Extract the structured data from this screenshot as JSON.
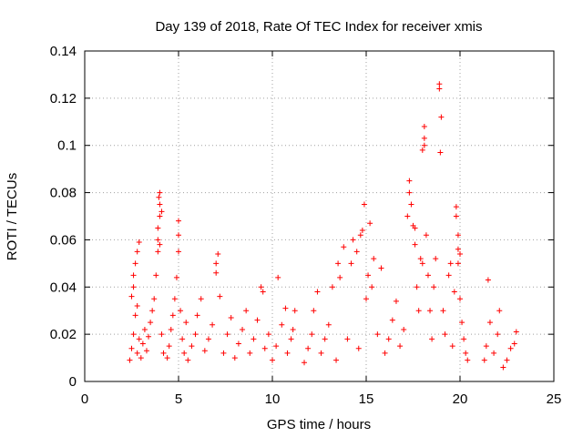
{
  "chart_data": {
    "type": "scatter",
    "title": "Day 139 of 2018, Rate Of TEC Index for receiver xmis",
    "xlabel": "GPS time / hours",
    "ylabel": "ROTI / TECUs",
    "xlim": [
      0,
      25
    ],
    "ylim": [
      0,
      0.14
    ],
    "xticks": [
      0,
      5,
      10,
      15,
      20,
      25
    ],
    "xtick_labels": [
      "0",
      "5",
      "10",
      "15",
      "20",
      "25"
    ],
    "yticks": [
      0,
      0.02,
      0.04,
      0.06,
      0.08,
      0.1,
      0.12,
      0.14
    ],
    "ytick_labels": [
      "0",
      "0.02",
      "0.04",
      "0.06",
      "0.08",
      "0.1",
      "0.12",
      "0.14"
    ],
    "grid": true,
    "marker": "+",
    "series": [
      {
        "name": "ROTI",
        "color": "#ff0000",
        "points": [
          [
            2.4,
            0.009
          ],
          [
            2.5,
            0.014
          ],
          [
            2.6,
            0.02
          ],
          [
            2.7,
            0.028
          ],
          [
            2.8,
            0.012
          ],
          [
            2.9,
            0.018
          ],
          [
            2.5,
            0.036
          ],
          [
            2.6,
            0.045
          ],
          [
            2.7,
            0.05
          ],
          [
            2.8,
            0.055
          ],
          [
            2.9,
            0.059
          ],
          [
            2.6,
            0.04
          ],
          [
            2.8,
            0.032
          ],
          [
            3.0,
            0.01
          ],
          [
            3.1,
            0.016
          ],
          [
            3.2,
            0.022
          ],
          [
            3.3,
            0.013
          ],
          [
            3.4,
            0.019
          ],
          [
            3.5,
            0.025
          ],
          [
            3.6,
            0.03
          ],
          [
            3.7,
            0.035
          ],
          [
            3.8,
            0.045
          ],
          [
            3.9,
            0.055
          ],
          [
            3.9,
            0.06
          ],
          [
            3.9,
            0.065
          ],
          [
            4.0,
            0.07
          ],
          [
            4.0,
            0.075
          ],
          [
            4.0,
            0.08
          ],
          [
            3.95,
            0.078
          ],
          [
            4.1,
            0.072
          ],
          [
            4.0,
            0.058
          ],
          [
            4.1,
            0.02
          ],
          [
            4.2,
            0.012
          ],
          [
            4.4,
            0.01
          ],
          [
            4.5,
            0.015
          ],
          [
            4.6,
            0.022
          ],
          [
            4.7,
            0.028
          ],
          [
            4.8,
            0.035
          ],
          [
            4.9,
            0.044
          ],
          [
            5.0,
            0.055
          ],
          [
            5.0,
            0.062
          ],
          [
            5.0,
            0.068
          ],
          [
            5.1,
            0.03
          ],
          [
            5.2,
            0.018
          ],
          [
            5.3,
            0.012
          ],
          [
            5.4,
            0.025
          ],
          [
            5.5,
            0.009
          ],
          [
            5.7,
            0.015
          ],
          [
            5.9,
            0.02
          ],
          [
            6.0,
            0.028
          ],
          [
            6.2,
            0.035
          ],
          [
            6.4,
            0.013
          ],
          [
            6.6,
            0.018
          ],
          [
            6.8,
            0.024
          ],
          [
            7.0,
            0.046
          ],
          [
            7.1,
            0.054
          ],
          [
            7.0,
            0.05
          ],
          [
            7.2,
            0.036
          ],
          [
            7.4,
            0.012
          ],
          [
            7.6,
            0.02
          ],
          [
            7.8,
            0.027
          ],
          [
            8.0,
            0.01
          ],
          [
            8.2,
            0.016
          ],
          [
            8.4,
            0.022
          ],
          [
            8.6,
            0.03
          ],
          [
            8.8,
            0.012
          ],
          [
            9.0,
            0.018
          ],
          [
            9.2,
            0.026
          ],
          [
            9.4,
            0.04
          ],
          [
            9.5,
            0.038
          ],
          [
            9.6,
            0.014
          ],
          [
            9.8,
            0.02
          ],
          [
            10.0,
            0.009
          ],
          [
            10.2,
            0.015
          ],
          [
            10.3,
            0.044
          ],
          [
            10.5,
            0.024
          ],
          [
            10.7,
            0.031
          ],
          [
            10.8,
            0.012
          ],
          [
            11.0,
            0.018
          ],
          [
            11.1,
            0.022
          ],
          [
            11.2,
            0.03
          ],
          [
            11.7,
            0.008
          ],
          [
            11.9,
            0.014
          ],
          [
            12.1,
            0.02
          ],
          [
            12.2,
            0.03
          ],
          [
            12.4,
            0.038
          ],
          [
            12.6,
            0.012
          ],
          [
            12.8,
            0.018
          ],
          [
            13.0,
            0.024
          ],
          [
            13.2,
            0.04
          ],
          [
            13.4,
            0.009
          ],
          [
            13.5,
            0.05
          ],
          [
            13.6,
            0.044
          ],
          [
            13.8,
            0.057
          ],
          [
            14.0,
            0.018
          ],
          [
            14.2,
            0.05
          ],
          [
            14.3,
            0.06
          ],
          [
            14.5,
            0.055
          ],
          [
            14.6,
            0.014
          ],
          [
            14.7,
            0.062
          ],
          [
            14.8,
            0.064
          ],
          [
            14.9,
            0.075
          ],
          [
            15.0,
            0.035
          ],
          [
            15.1,
            0.045
          ],
          [
            15.2,
            0.067
          ],
          [
            15.3,
            0.04
          ],
          [
            15.4,
            0.052
          ],
          [
            15.6,
            0.02
          ],
          [
            15.8,
            0.048
          ],
          [
            16.0,
            0.012
          ],
          [
            16.2,
            0.018
          ],
          [
            16.4,
            0.026
          ],
          [
            16.6,
            0.034
          ],
          [
            16.8,
            0.015
          ],
          [
            17.0,
            0.022
          ],
          [
            17.2,
            0.07
          ],
          [
            17.3,
            0.08
          ],
          [
            17.3,
            0.085
          ],
          [
            17.4,
            0.075
          ],
          [
            17.5,
            0.066
          ],
          [
            17.6,
            0.065
          ],
          [
            17.6,
            0.058
          ],
          [
            17.7,
            0.04
          ],
          [
            17.8,
            0.03
          ],
          [
            17.9,
            0.052
          ],
          [
            18.0,
            0.05
          ],
          [
            18.0,
            0.098
          ],
          [
            18.1,
            0.1
          ],
          [
            18.1,
            0.103
          ],
          [
            18.1,
            0.108
          ],
          [
            18.2,
            0.062
          ],
          [
            18.3,
            0.045
          ],
          [
            18.4,
            0.03
          ],
          [
            18.5,
            0.018
          ],
          [
            18.6,
            0.04
          ],
          [
            18.7,
            0.052
          ],
          [
            18.9,
            0.126
          ],
          [
            18.9,
            0.124
          ],
          [
            19.0,
            0.112
          ],
          [
            18.95,
            0.097
          ],
          [
            19.1,
            0.03
          ],
          [
            19.2,
            0.02
          ],
          [
            19.4,
            0.045
          ],
          [
            19.5,
            0.05
          ],
          [
            19.6,
            0.015
          ],
          [
            19.7,
            0.038
          ],
          [
            19.8,
            0.074
          ],
          [
            19.8,
            0.07
          ],
          [
            19.9,
            0.062
          ],
          [
            19.9,
            0.056
          ],
          [
            20.0,
            0.054
          ],
          [
            19.9,
            0.05
          ],
          [
            20.0,
            0.035
          ],
          [
            20.1,
            0.025
          ],
          [
            20.2,
            0.018
          ],
          [
            20.3,
            0.012
          ],
          [
            20.4,
            0.009
          ],
          [
            21.3,
            0.009
          ],
          [
            21.4,
            0.015
          ],
          [
            21.5,
            0.043
          ],
          [
            21.6,
            0.025
          ],
          [
            21.8,
            0.012
          ],
          [
            22.0,
            0.02
          ],
          [
            22.1,
            0.03
          ],
          [
            22.3,
            0.006
          ],
          [
            22.5,
            0.009
          ],
          [
            22.7,
            0.014
          ],
          [
            22.9,
            0.016
          ],
          [
            23.0,
            0.021
          ]
        ]
      }
    ]
  }
}
